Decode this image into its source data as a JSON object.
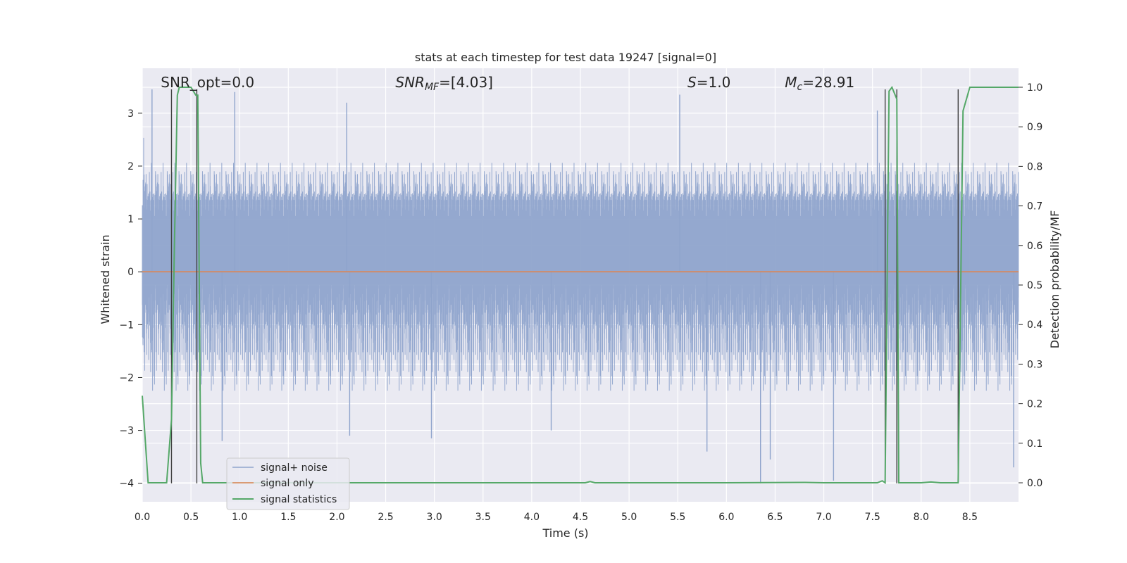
{
  "chart_data": {
    "type": "line",
    "title": "stats at each timestep for test data 19247 [signal=0]",
    "xlabel": "Time (s)",
    "ylabel": "Whitened strain",
    "y2label": "Detection probability/MF",
    "xlim": [
      0.0,
      9.0
    ],
    "ylim": [
      -4.35,
      3.85
    ],
    "y2lim": [
      -0.048,
      1.048
    ],
    "xticks": [
      "0.0",
      "0.5",
      "1.0",
      "1.5",
      "2.0",
      "2.5",
      "3.0",
      "3.5",
      "4.0",
      "4.5",
      "5.0",
      "5.5",
      "6.0",
      "6.5",
      "7.0",
      "7.5",
      "8.0",
      "8.5"
    ],
    "yticks": [
      "3",
      "2",
      "1",
      "0",
      "−1",
      "−2",
      "−3",
      "−4"
    ],
    "y2ticks": [
      "1.0",
      "0.9",
      "0.8",
      "0.7",
      "0.6",
      "0.5",
      "0.4",
      "0.3",
      "0.2",
      "0.1",
      "0.0"
    ],
    "grid": true,
    "legend_position": "lower-left",
    "annotations": [
      {
        "text": "SNR_opt=0.0",
        "x": 0.19
      },
      {
        "text": "SNR",
        "sub": "MF",
        "suffix": "=[4.03]",
        "italic": true,
        "x": 2.6
      },
      {
        "text": "S",
        "suffix": "=1.0",
        "italic": true,
        "x": 5.6
      },
      {
        "text": "M",
        "sub": "c",
        "suffix": "=28.91",
        "italic": true,
        "x": 6.6
      }
    ],
    "series": [
      {
        "name": "signal+ noise",
        "color": "#8fa4cc",
        "axis": "left",
        "sample_rate": 2048,
        "envelope_typical": [
          -1.5,
          1.9
        ],
        "extreme_peaks": [
          [
            0.1,
            3.45
          ],
          [
            0.95,
            3.4
          ],
          [
            5.52,
            3.35
          ],
          [
            2.1,
            3.2
          ],
          [
            7.55,
            3.05
          ],
          [
            6.35,
            -4.0
          ],
          [
            7.1,
            -3.95
          ],
          [
            8.95,
            -3.7
          ],
          [
            6.45,
            -3.55
          ],
          [
            5.8,
            -3.4
          ],
          [
            0.82,
            -3.2
          ],
          [
            2.97,
            -3.15
          ],
          [
            2.13,
            -3.1
          ],
          [
            4.2,
            -3.0
          ]
        ]
      },
      {
        "name": "signal only",
        "color": "#dd8452",
        "axis": "left",
        "x": [
          0.0,
          9.0
        ],
        "y": [
          0.0,
          0.0
        ]
      },
      {
        "name": "signal statistics",
        "color": "#55a868",
        "axis": "right",
        "x": [
          0.0,
          0.06,
          0.15,
          0.25,
          0.3,
          0.33,
          0.36,
          0.38,
          0.4,
          0.45,
          0.5,
          0.55,
          0.57,
          0.6,
          0.62,
          1.0,
          2.0,
          3.0,
          4.0,
          4.55,
          4.6,
          4.65,
          5.0,
          6.0,
          6.8,
          7.0,
          7.55,
          7.6,
          7.63,
          7.67,
          7.7,
          7.75,
          7.77,
          7.8,
          8.0,
          8.1,
          8.2,
          8.38,
          8.43,
          8.5,
          9.0
        ],
        "y": [
          0.22,
          0.0,
          0.0,
          0.0,
          0.16,
          0.6,
          0.98,
          1.0,
          1.0,
          1.0,
          1.0,
          0.98,
          0.98,
          0.05,
          0.0,
          0.0,
          0.0,
          0.0,
          0.0,
          0.0,
          0.003,
          0.0,
          0.0,
          0.0,
          0.001,
          0.0,
          0.0,
          0.005,
          0.0,
          0.99,
          1.0,
          0.97,
          0.0,
          0.0,
          0.0,
          0.002,
          0.0,
          0.0,
          0.94,
          1.0,
          1.0
        ]
      }
    ],
    "vertical_markers": [
      {
        "x": 0.3,
        "y_top": 3.45,
        "y_bottom": -4.0
      },
      {
        "x": 0.56,
        "y_top": 3.45,
        "y_bottom": -4.0
      },
      {
        "x": 7.63,
        "y_top": 3.45,
        "y_bottom": -4.0
      },
      {
        "x": 7.75,
        "y_top": 3.45,
        "y_bottom": -4.0
      },
      {
        "x": 8.38,
        "y_top": 3.45,
        "y_bottom": -4.0
      }
    ]
  },
  "colors": {
    "plot_background": "#eaeaf2",
    "grid": "#ffffff",
    "marker": "#404040",
    "legend_background": "#eaeaf2"
  }
}
